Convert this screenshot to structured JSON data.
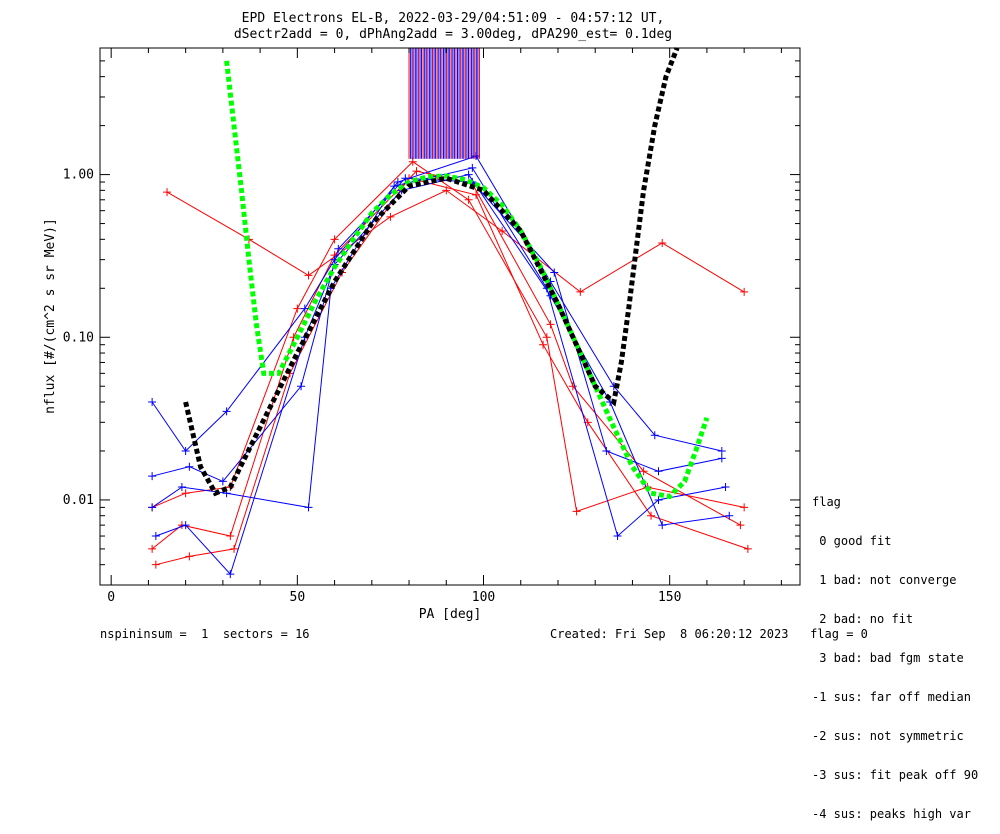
{
  "title_line1": "EPD Electrons EL-B, 2022-03-29/04:51:09 - 04:57:12 UT,",
  "title_line2": "dSectr2add = 0, dPhAng2add = 3.00deg, dPA290_est=   0.1deg",
  "footer_left": "nspininsum =  1  sectors = 16",
  "footer_right": "Created: Fri Sep  8 06:20:12 2023   flag = 0",
  "legend": {
    "title": "flag",
    "items": [
      " 0 good fit",
      " 1 bad: not converge",
      " 2 bad: no fit",
      " 3 bad: bad fgm state",
      "-1 sus: far off median",
      "-2 sus: not symmetric",
      "-3 sus: fit peak off 90",
      "-4 sus: peaks high var"
    ]
  },
  "chart_data": {
    "type": "line",
    "xlabel": "PA [deg]",
    "ylabel": "nflux [#/(cm^2 s sr MeV)]",
    "xlim": [
      -3,
      185
    ],
    "ylim": [
      0.003,
      6.0
    ],
    "yscale": "log",
    "xticks": [
      0,
      50,
      100,
      150
    ],
    "yticks": [
      0.01,
      0.1,
      1.0
    ],
    "ytick_labels": [
      "0.01",
      "0.10",
      "1.00"
    ],
    "colors": {
      "red": "#ff0000",
      "blue": "#0000ff",
      "green": "#00ff00",
      "black": "#000000"
    },
    "series": [
      {
        "color": "red",
        "style": "line+cross",
        "x": [
          15,
          37,
          53,
          75,
          90,
          105,
          126,
          148,
          170
        ],
        "y": [
          0.78,
          0.4,
          0.24,
          0.55,
          0.8,
          0.45,
          0.19,
          0.38,
          0.19
        ]
      },
      {
        "color": "red",
        "style": "line+cross",
        "x": [
          11,
          19,
          32,
          49,
          60,
          82,
          97,
          118,
          124,
          143,
          169
        ],
        "y": [
          0.005,
          0.007,
          0.006,
          0.1,
          0.32,
          1.05,
          0.88,
          0.12,
          0.05,
          0.015,
          0.007
        ]
      },
      {
        "color": "red",
        "style": "line+cross",
        "x": [
          11,
          20,
          32,
          50,
          60,
          81,
          96,
          117,
          125,
          144,
          170
        ],
        "y": [
          0.009,
          0.011,
          0.012,
          0.15,
          0.4,
          1.2,
          0.7,
          0.1,
          0.0085,
          0.012,
          0.009
        ]
      },
      {
        "color": "red",
        "style": "line+cross",
        "x": [
          12,
          21,
          33,
          48,
          62,
          80,
          98,
          116,
          128,
          145,
          171
        ],
        "y": [
          0.004,
          0.0045,
          0.005,
          0.06,
          0.25,
          0.95,
          0.75,
          0.09,
          0.03,
          0.008,
          0.005
        ]
      },
      {
        "color": "blue",
        "style": "line+cross",
        "x": [
          11,
          20,
          31,
          52,
          60,
          77,
          98,
          118,
          135,
          146,
          164
        ],
        "y": [
          0.04,
          0.02,
          0.035,
          0.15,
          0.3,
          0.9,
          1.3,
          0.22,
          0.05,
          0.025,
          0.02
        ]
      },
      {
        "color": "blue",
        "style": "line+cross",
        "x": [
          11,
          19,
          31,
          53,
          59,
          76,
          97,
          117,
          136,
          147,
          165
        ],
        "y": [
          0.009,
          0.012,
          0.011,
          0.009,
          0.2,
          0.85,
          1.1,
          0.2,
          0.006,
          0.01,
          0.012
        ]
      },
      {
        "color": "blue",
        "style": "line+cross",
        "x": [
          12,
          20,
          32,
          52,
          60,
          78,
          96,
          118,
          134,
          148,
          166
        ],
        "y": [
          0.006,
          0.007,
          0.0035,
          0.1,
          0.28,
          0.8,
          1.0,
          0.18,
          0.04,
          0.007,
          0.008
        ]
      },
      {
        "color": "blue",
        "style": "line+cross",
        "x": [
          11,
          21,
          30,
          51,
          61,
          79,
          97,
          119,
          133,
          147,
          164
        ],
        "y": [
          0.014,
          0.016,
          0.013,
          0.05,
          0.35,
          0.95,
          0.9,
          0.25,
          0.02,
          0.015,
          0.018
        ]
      },
      {
        "color": "green",
        "style": "dashed",
        "x": [
          31,
          33,
          35,
          37,
          39,
          41,
          45,
          50,
          55,
          60,
          65,
          70,
          75,
          80,
          85,
          90,
          95,
          100,
          105,
          110,
          115,
          120,
          125,
          130,
          135,
          140,
          145,
          150,
          154,
          157,
          160
        ],
        "y": [
          5.0,
          2.0,
          0.8,
          0.3,
          0.12,
          0.06,
          0.06,
          0.1,
          0.17,
          0.27,
          0.4,
          0.58,
          0.75,
          0.9,
          0.97,
          0.98,
          0.93,
          0.83,
          0.65,
          0.45,
          0.28,
          0.16,
          0.09,
          0.05,
          0.028,
          0.016,
          0.011,
          0.0105,
          0.013,
          0.02,
          0.032
        ]
      },
      {
        "color": "black",
        "style": "dashed",
        "x": [
          20,
          24,
          28,
          32,
          40,
          50,
          60,
          70,
          80,
          90,
          100,
          110,
          120,
          130,
          135,
          137,
          139,
          141,
          143,
          146,
          149,
          152
        ],
        "y": [
          0.04,
          0.016,
          0.011,
          0.012,
          0.028,
          0.08,
          0.22,
          0.5,
          0.85,
          0.95,
          0.8,
          0.45,
          0.16,
          0.05,
          0.04,
          0.07,
          0.15,
          0.35,
          0.8,
          2.0,
          4.0,
          6.0
        ]
      }
    ]
  }
}
